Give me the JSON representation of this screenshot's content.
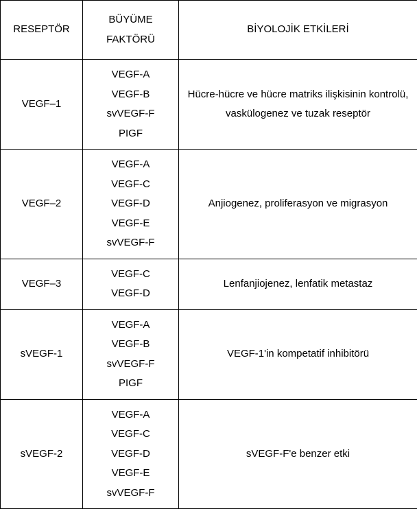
{
  "table": {
    "columns": [
      "RESEPTÖR",
      "BÜYÜME FAKTÖRÜ",
      "BİYOLOJİK ETKİLERİ"
    ],
    "rows": [
      {
        "receptor": "VEGF–1",
        "factors": [
          "VEGF-A",
          "VEGF-B",
          "svVEGF-F",
          "PIGF"
        ],
        "effects": "Hücre-hücre ve hücre matriks ilişkisinin kontrolü, vaskülogenez ve tuzak reseptör"
      },
      {
        "receptor": "VEGF–2",
        "factors": [
          "VEGF-A",
          "VEGF-C",
          "VEGF-D",
          "VEGF-E",
          "svVEGF-F"
        ],
        "effects": "Anjiogenez, proliferasyon ve migrasyon"
      },
      {
        "receptor": "VEGF–3",
        "factors": [
          "VEGF-C",
          "VEGF-D"
        ],
        "effects": "Lenfanjiojenez, lenfatik metastaz"
      },
      {
        "receptor": "sVEGF-1",
        "factors": [
          "VEGF-A",
          "VEGF-B",
          "svVEGF-F",
          "PIGF"
        ],
        "effects": "VEGF-1'in kompetatif inhibitörü"
      },
      {
        "receptor": "sVEGF-2",
        "factors": [
          "VEGF-A",
          "VEGF-C",
          "VEGF-D",
          "VEGF-E",
          "svVEGF-F"
        ],
        "effects": "sVEGF-F'e benzer etki"
      }
    ],
    "border_color": "#000000",
    "background_color": "#ffffff",
    "text_color": "#000000",
    "font_size": 15
  }
}
